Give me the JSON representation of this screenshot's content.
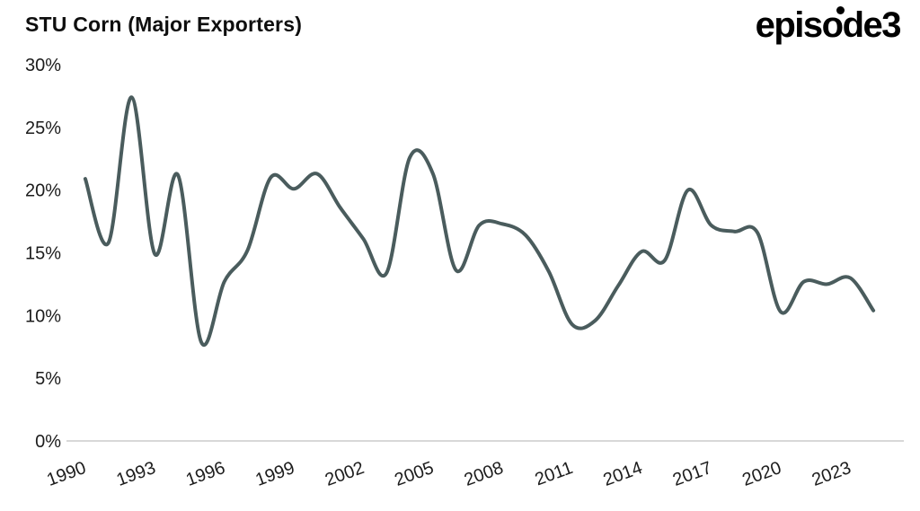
{
  "header": {
    "title": "STU Corn (Major Exporters)",
    "logo_text": "episode3"
  },
  "chart_data": {
    "type": "line",
    "title": "STU Corn (Major Exporters)",
    "series_name": "STU Corn (Major Exporters)",
    "x": [
      1990,
      1991,
      1992,
      1993,
      1994,
      1995,
      1996,
      1997,
      1998,
      1999,
      2000,
      2001,
      2002,
      2003,
      2004,
      2005,
      2006,
      2007,
      2008,
      2009,
      2010,
      2011,
      2012,
      2013,
      2014,
      2015,
      2016,
      2017,
      2018,
      2019,
      2020,
      2021,
      2022,
      2023,
      2024
    ],
    "values": [
      20.9,
      15.8,
      27.4,
      14.9,
      21.2,
      7.9,
      12.7,
      15.2,
      21.0,
      20.1,
      21.3,
      18.6,
      16.1,
      13.4,
      22.6,
      21.3,
      13.6,
      17.2,
      17.3,
      16.4,
      13.5,
      9.3,
      9.6,
      12.4,
      15.1,
      14.4,
      20.0,
      17.2,
      16.7,
      16.6,
      10.3,
      12.7,
      12.5,
      13.0,
      10.4
    ],
    "unit": "%",
    "ylim": [
      0,
      30
    ],
    "y_ticks": [
      0,
      5,
      10,
      15,
      20,
      25,
      30
    ],
    "y_tick_format": "percent",
    "x_ticks": [
      1990,
      1993,
      1996,
      1999,
      2002,
      2005,
      2008,
      2011,
      2014,
      2017,
      2020,
      2023
    ],
    "line_color": "#4a5c5d",
    "axis_line_color": "#cbcbcb",
    "grid": false,
    "legend": "none",
    "background": "#ffffff"
  }
}
